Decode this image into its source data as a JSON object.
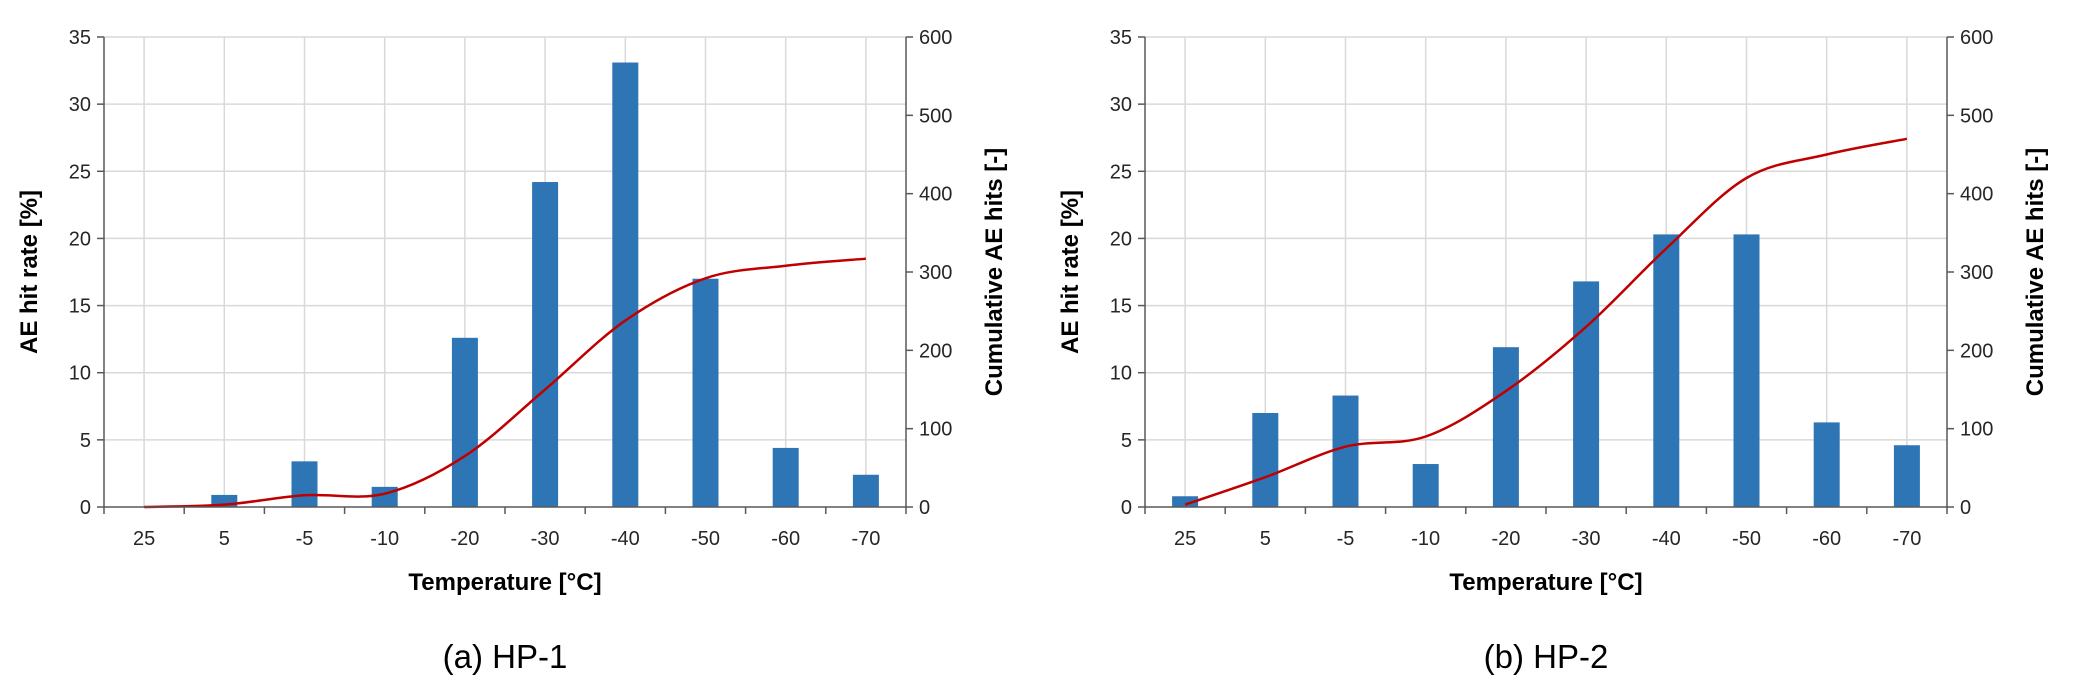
{
  "colors": {
    "bar": "#2e75b6",
    "line": "#c00000",
    "grid": "#d9d9d9",
    "axis": "#595959"
  },
  "chart_data": [
    {
      "type": "bar",
      "caption": "(a) HP-1",
      "xlabel": "Temperature [°C]",
      "ylabel": "AE hit rate [%]",
      "y2label": "Cumulative AE hits [-]",
      "categories": [
        "25",
        "5",
        "-5",
        "-10",
        "-20",
        "-30",
        "-40",
        "-50",
        "-60",
        "-70"
      ],
      "ylim": [
        0,
        35
      ],
      "yticks": [
        0,
        5,
        10,
        15,
        20,
        25,
        30,
        35
      ],
      "y2lim": [
        0,
        600
      ],
      "y2ticks": [
        0,
        100,
        200,
        300,
        400,
        500,
        600
      ],
      "grid": true,
      "series": [
        {
          "axis": "left",
          "type": "bar",
          "values": [
            0,
            0.9,
            3.4,
            1.5,
            12.6,
            24.2,
            33.1,
            17.0,
            4.4,
            2.4
          ]
        },
        {
          "axis": "right",
          "type": "line",
          "values": [
            0,
            3,
            15,
            17,
            65,
            150,
            238,
            292,
            308,
            317
          ]
        }
      ]
    },
    {
      "type": "bar",
      "caption": "(b) HP-2",
      "xlabel": "Temperature [°C]",
      "ylabel": "AE hit rate [%]",
      "y2label": "Cumulative AE hits [-]",
      "categories": [
        "25",
        "5",
        "-5",
        "-10",
        "-20",
        "-30",
        "-40",
        "-50",
        "-60",
        "-70"
      ],
      "ylim": [
        0,
        35
      ],
      "yticks": [
        0,
        5,
        10,
        15,
        20,
        25,
        30,
        35
      ],
      "y2lim": [
        0,
        600
      ],
      "y2ticks": [
        0,
        100,
        200,
        300,
        400,
        500,
        600
      ],
      "grid": true,
      "series": [
        {
          "axis": "left",
          "type": "bar",
          "values": [
            0.8,
            7.0,
            8.3,
            3.2,
            11.9,
            16.8,
            20.3,
            20.3,
            6.3,
            4.6
          ]
        },
        {
          "axis": "right",
          "type": "line",
          "values": [
            3,
            38,
            77,
            90,
            148,
            230,
            330,
            420,
            450,
            470
          ]
        }
      ]
    }
  ]
}
